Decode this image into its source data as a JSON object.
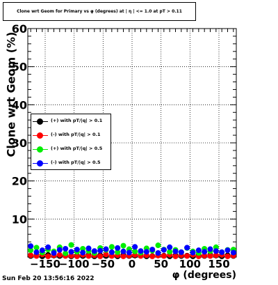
{
  "chart_data": {
    "type": "scatter",
    "title": "Clone wrt Geom for Primary vs φ (degrees) at | η | <= 1.0 at pT > 0.11",
    "xlabel": "φ (degrees)",
    "ylabel": "Clone wrt Geom (%)",
    "xlim": [
      -180,
      180
    ],
    "ylim": [
      0,
      60
    ],
    "x_ticks": [
      -150,
      -100,
      -50,
      0,
      50,
      100,
      150
    ],
    "y_ticks": [
      10,
      20,
      30,
      40,
      50,
      60
    ],
    "grid": true,
    "legend_position": "left-middle",
    "series": [
      {
        "name": "(+) with pT/|q| > 0.1",
        "color": "#000000",
        "x": [
          -175,
          -165,
          -155,
          -145,
          -135,
          -125,
          -115,
          -105,
          -95,
          -85,
          -75,
          -65,
          -55,
          -45,
          -35,
          -25,
          -15,
          -5,
          5,
          15,
          25,
          35,
          45,
          55,
          65,
          75,
          85,
          95,
          105,
          115,
          125,
          135,
          145,
          155,
          165,
          175
        ],
        "y": [
          0.3,
          0.5,
          0.2,
          0.6,
          0.4,
          0.3,
          0.5,
          0.2,
          0.4,
          0.3,
          0.6,
          0.2,
          0.5,
          0.3,
          0.4,
          0.2,
          0.6,
          0.3,
          0.4,
          0.5,
          0.2,
          0.3,
          0.6,
          0.4,
          0.2,
          0.5,
          0.3,
          0.4,
          0.2,
          0.5,
          0.3,
          0.6,
          0.4,
          0.2,
          0.5,
          0.3
        ]
      },
      {
        "name": "(-) with pT/|q| > 0.1",
        "color": "#ff0000",
        "x": [
          -175,
          -165,
          -155,
          -145,
          -135,
          -125,
          -115,
          -105,
          -95,
          -85,
          -75,
          -65,
          -55,
          -45,
          -35,
          -25,
          -15,
          -5,
          5,
          15,
          25,
          35,
          45,
          55,
          65,
          75,
          85,
          95,
          105,
          115,
          125,
          135,
          145,
          155,
          165,
          175
        ],
        "y": [
          0.5,
          0.3,
          0.7,
          0.2,
          0.5,
          0.6,
          0.3,
          0.4,
          0.2,
          0.6,
          0.3,
          0.5,
          0.2,
          0.7,
          0.3,
          0.5,
          0.2,
          0.4,
          0.6,
          0.3,
          0.5,
          0.2,
          0.4,
          0.3,
          0.6,
          0.2,
          0.5,
          0.3,
          0.6,
          0.2,
          0.4,
          0.3,
          0.5,
          0.6,
          0.2,
          0.4
        ]
      },
      {
        "name": "(+) with pT/|q| > 0.5",
        "color": "#00ee00",
        "x": [
          -175,
          -165,
          -155,
          -145,
          -135,
          -125,
          -115,
          -105,
          -95,
          -85,
          -75,
          -65,
          -55,
          -45,
          -35,
          -25,
          -15,
          -5,
          5,
          15,
          25,
          35,
          45,
          55,
          65,
          75,
          85,
          95,
          105,
          115,
          125,
          135,
          145,
          155,
          165,
          175
        ],
        "y": [
          1.8,
          2.5,
          1.2,
          2.0,
          1.5,
          2.6,
          1.0,
          3.2,
          1.4,
          2.2,
          1.6,
          1.1,
          2.4,
          1.9,
          2.7,
          1.3,
          3.0,
          2.1,
          1.5,
          1.2,
          2.3,
          1.7,
          3.1,
          2.0,
          1.4,
          1.9,
          1.3,
          2.4,
          1.5,
          1.1,
          2.2,
          1.6,
          2.6,
          1.3,
          1.9,
          2.0
        ]
      },
      {
        "name": "(-) with pT/|q| > 0.5",
        "color": "#0000ff",
        "x": [
          -175,
          -165,
          -155,
          -145,
          -135,
          -125,
          -115,
          -105,
          -95,
          -85,
          -75,
          -65,
          -55,
          -45,
          -35,
          -25,
          -15,
          -5,
          5,
          15,
          25,
          35,
          45,
          55,
          65,
          75,
          85,
          95,
          105,
          115,
          125,
          135,
          145,
          155,
          165,
          175
        ],
        "y": [
          2.9,
          1.3,
          1.8,
          2.6,
          1.1,
          1.9,
          2.2,
          1.4,
          2.0,
          1.2,
          2.3,
          1.6,
          1.7,
          2.1,
          1.3,
          2.4,
          1.5,
          1.2,
          2.7,
          1.6,
          1.4,
          2.0,
          1.1,
          1.9,
          2.6,
          1.5,
          1.3,
          2.5,
          1.2,
          1.8,
          1.4,
          2.1,
          1.6,
          1.3,
          1.8,
          1.2
        ]
      }
    ]
  },
  "datestamp": "Sun Feb 20 13:56:16 2022"
}
